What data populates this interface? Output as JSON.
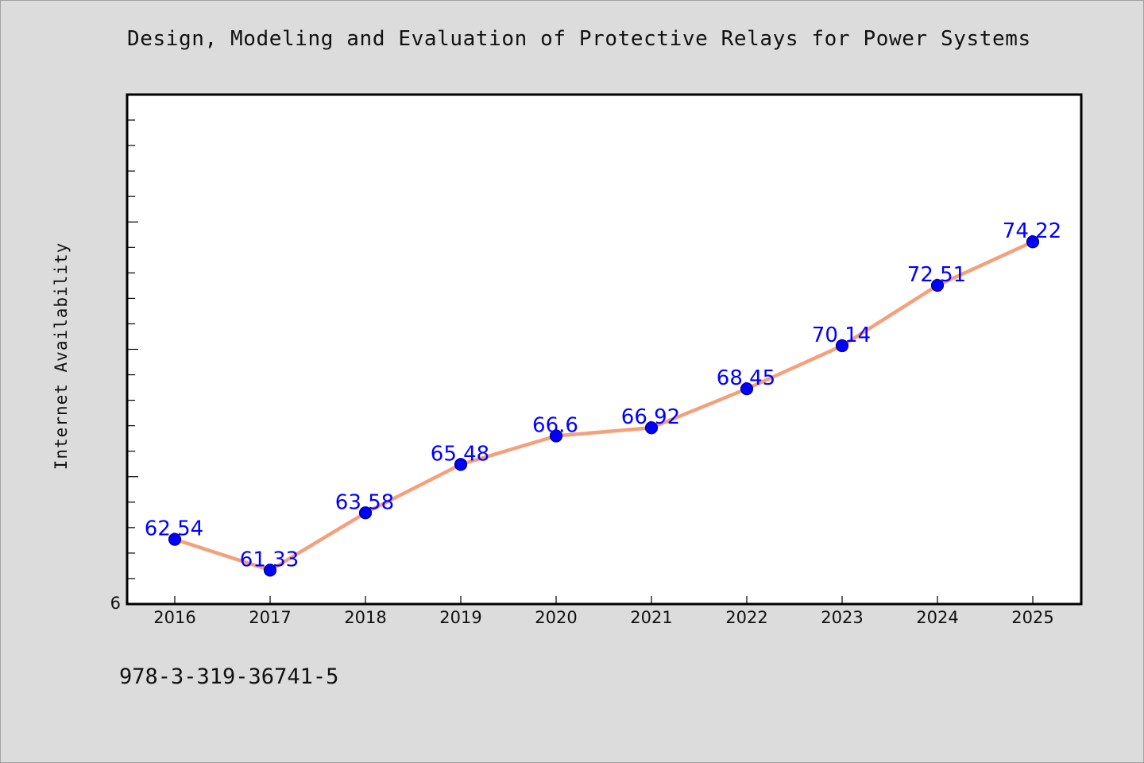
{
  "title": "Design, Modeling and Evaluation of Protective Relays for Power Systems",
  "footer_text": "978-3-319-36741-5",
  "colors": {
    "line": "#f4a07c",
    "marker": "#0000ff",
    "label": "#0000ff",
    "background": "#dcdcdc",
    "plot_background": "#ffffff"
  },
  "chart_data": {
    "type": "line",
    "title": "Design, Modeling and Evaluation of Protective Relays for Power Systems",
    "xlabel": "",
    "ylabel": "Internet Availability",
    "y_tick_label": "6",
    "x": [
      "2016",
      "2017",
      "2018",
      "2019",
      "2020",
      "2021",
      "2022",
      "2023",
      "2024",
      "2025"
    ],
    "series": [
      {
        "values": [
          62.54,
          61.33,
          63.58,
          65.48,
          66.6,
          66.92,
          68.45,
          70.14,
          72.51,
          74.22
        ]
      }
    ],
    "data_labels": [
      "62.54",
      "61.33",
      "63.58",
      "65.48",
      "66.6",
      "66.92",
      "68.45",
      "70.14",
      "72.51",
      "74.22"
    ],
    "ylim": [
      60,
      80
    ],
    "grid": false,
    "legend": "none"
  }
}
